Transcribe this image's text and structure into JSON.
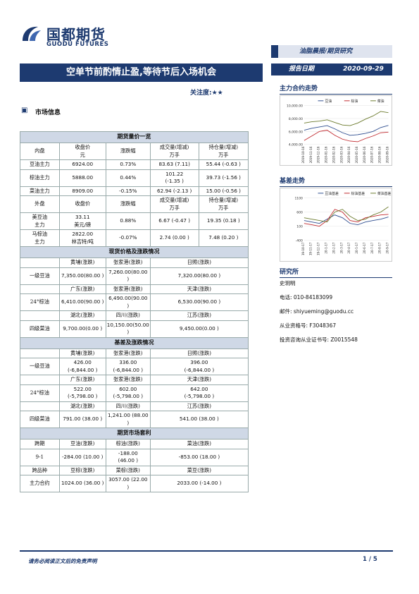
{
  "header": {
    "logo_cn": "国都期货",
    "logo_en": "GUODU FUTURES",
    "category": "油脂晨报/期货研究",
    "title": "空单节前酌情止盈,等待节后入场机会",
    "attention_label": "关注度:",
    "attention_stars": "★★",
    "date_label": "报告日期",
    "date_value": "2020-09-29"
  },
  "section": {
    "market_info": "市场信息"
  },
  "table": {
    "futures_title": "期货量价一览",
    "domestic_head": [
      "内盘",
      "收盘价\n元",
      "涨跌幅",
      "成交量(增减)\n万手",
      "持仓量(增减)\n万手"
    ],
    "domestic_rows": [
      [
        "豆油主力",
        "6924.00",
        "0.73%",
        "83.63 (7.11)",
        "55.44 (-0.63 )"
      ],
      [
        "棕油主力",
        "5888.00",
        "0.44%",
        "101.22\n(-1.35 )",
        "39.73 (-1.56 )"
      ],
      [
        "菜油主力",
        "8909.00",
        "-0.15%",
        "62.94 (-2.13 )",
        "15.00 (-0.56 )"
      ]
    ],
    "foreign_head": [
      "外盘",
      "收盘价",
      "涨跌幅",
      "成交量(增减)\n万手",
      "持仓量(增减)\n万手"
    ],
    "foreign_rows": [
      [
        "美豆油\n主力",
        "33.11\n美元/磅",
        "0.88%",
        "6.67 (-0.47 )",
        "19.35 (0.18 )"
      ],
      [
        "马棕油\n主力",
        "2822.00\n林吉特/吨",
        "-0.07%",
        "2.74 (0.00 )",
        "7.48 (0.20 )"
      ]
    ],
    "spot_title": "现货价格及涨跌情况",
    "spot_rows": [
      [
        "",
        "黄埔(涨跌)",
        "张家港(涨跌)",
        "日照(涨跌)"
      ],
      [
        "一级豆油",
        "7,350.00(80.00 )",
        "7,260.00(80.00 )",
        "7,320.00(80.00 )"
      ],
      [
        "",
        "广东(涨跌)",
        "张家港(涨跌)",
        "天津(涨跌)"
      ],
      [
        "24°棕油",
        "6,410.00(90.00 )",
        "6,490.00(90.00 )",
        "6,530.00(90.00 )"
      ],
      [
        "",
        "湖北(涨跌)",
        "四川(涨跌)",
        "江苏(涨跌)"
      ],
      [
        "四级菜油",
        "9,700.00(0.00 )",
        "10,150.00(50.00\n)",
        "9,450.00(0.00 )"
      ]
    ],
    "basis_title": "基差及涨跌情况",
    "basis_rows": [
      [
        "",
        "黄埔(涨跌)",
        "张家港(涨跌)",
        "日照(涨跌)"
      ],
      [
        "一级豆油",
        "426.00 (-6,844.00 )",
        "336.00\n(-6,844.00 )",
        "396.00\n(-6,844.00 )"
      ],
      [
        "",
        "广东(涨跌)",
        "张家港(涨跌)",
        "天津(涨跌)"
      ],
      [
        "24°棕油",
        "522.00 (-5,798.00 )",
        "602.00\n(-5,798.00 )",
        "642.00\n(-5,798.00 )"
      ],
      [
        "",
        "湖北(涨跌)",
        "四川(涨跌)",
        "江苏(涨跌)"
      ],
      [
        "四级菜油",
        "791.00 (38.00 )",
        "1,241.00 (88.00 )",
        "541.00 (38.00 )"
      ]
    ],
    "arb_title": "期货市场套利",
    "arb_rows": [
      [
        "跨期",
        "豆油(涨跌)",
        "棕油(涨跌)",
        "菜油(涨跌)"
      ],
      [
        "9-1",
        "-284.00 (10.00 )",
        "-188.00\n(46.00 )",
        "-853.00    (18.00 )"
      ],
      [
        "跨品种",
        "豆棕(涨跌)",
        "菜棕(涨跌)",
        "菜豆(涨跌)"
      ],
      [
        "主力合约",
        "1024.00 (36.00 )",
        "3057.00 (22.00 )",
        "2033.00 (-14.00 )"
      ]
    ]
  },
  "sidebar": {
    "trend_title": "主力合约走势",
    "basis_title": "基差走势",
    "research_title": "研究所",
    "researcher": "史玥明",
    "phone": "电话: 010-84183099",
    "email": "邮件: shiyueming@guodu.cc",
    "qualification": "从业资格号: F3048367",
    "consult": "投资咨询从业证书号: Z0015548"
  },
  "chart_data": [
    {
      "type": "line",
      "legend": [
        "豆油",
        "棕油",
        "菜油"
      ],
      "colors": [
        "#2e4d8f",
        "#c0282d",
        "#6b7a2c"
      ],
      "ylim": [
        4000,
        10000
      ],
      "yticks": [
        "10,000.00",
        "8,000.00",
        "6,000.00",
        "4,000.00"
      ],
      "xticks": [
        "2019-10-16",
        "2019-11-16",
        "2019-12-16",
        "2020-01-16",
        "2020-02-16",
        "2020-03-16",
        "2020-04-16",
        "2020-05-16",
        "2020-06-16",
        "2020-07-16",
        "2020-08-16",
        "2020-09-16"
      ],
      "series": [
        {
          "name": "豆油",
          "values": [
            6200,
            6500,
            6700,
            6900,
            6400,
            5800,
            5400,
            5500,
            5700,
            6000,
            6600,
            6924
          ]
        },
        {
          "name": "棕油",
          "values": [
            4600,
            5300,
            6000,
            6200,
            5400,
            4800,
            4500,
            4400,
            4900,
            5300,
            5800,
            5888
          ]
        },
        {
          "name": "菜油",
          "values": [
            7300,
            7500,
            7600,
            7800,
            7400,
            7000,
            6900,
            7300,
            7900,
            8400,
            9100,
            8909
          ]
        }
      ]
    },
    {
      "type": "line",
      "legend": [
        "豆油基差",
        "棕油基差",
        "菜油基差"
      ],
      "colors": [
        "#2e4d8f",
        "#c0282d",
        "#6b7a2c"
      ],
      "ylim": [
        -400,
        1100
      ],
      "yticks": [
        "1100",
        "600",
        "100",
        "-400"
      ],
      "xticks": [
        "19-10-17",
        "19-11-17",
        "19-12-17",
        "20-1-17",
        "20-2-17",
        "20-3-17",
        "20-4-17",
        "20-5-17",
        "20-6-17",
        "20-7-17",
        "20-8-17",
        "20-9-17"
      ],
      "series": [
        {
          "name": "豆油基差",
          "values": [
            300,
            250,
            200,
            350,
            500,
            400,
            200,
            150,
            250,
            300,
            350,
            426
          ]
        },
        {
          "name": "棕油基差",
          "values": [
            200,
            150,
            100,
            300,
            700,
            600,
            300,
            250,
            400,
            450,
            500,
            522
          ]
        },
        {
          "name": "菜油基差",
          "values": [
            400,
            350,
            300,
            250,
            600,
            700,
            450,
            300,
            350,
            500,
            600,
            791
          ]
        }
      ]
    }
  ],
  "footer": {
    "disclaimer": "请务必阅读正文后的免责声明",
    "page": "1 / 5"
  }
}
